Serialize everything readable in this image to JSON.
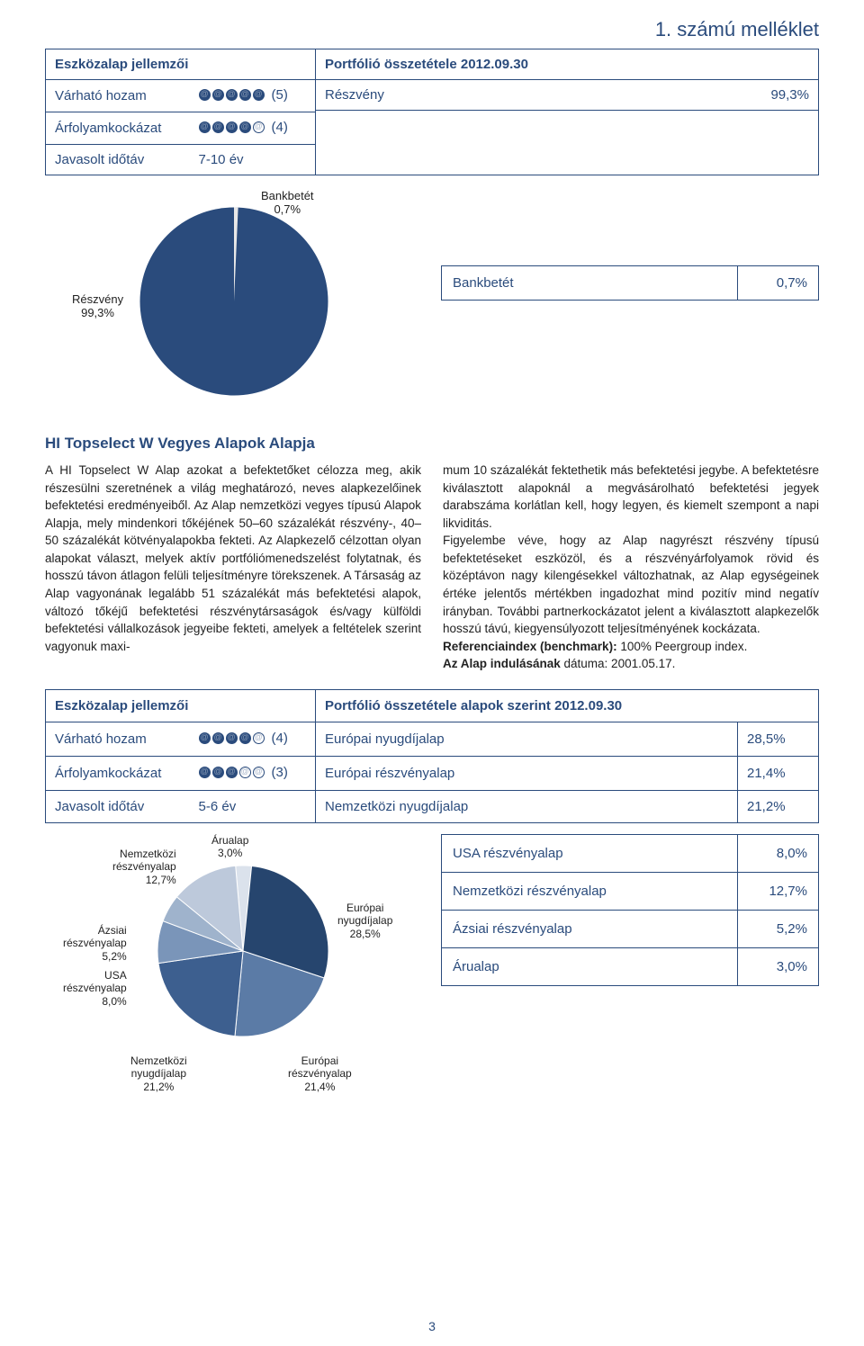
{
  "annex_title": "1. számú melléklet",
  "section1": {
    "heading_left": "Eszközalap jellemzői",
    "heading_right": "Portfólió összetétele 2012.09.30",
    "rows": [
      {
        "label": "Várható hozam",
        "rating": 5,
        "rating_text": "(5)"
      },
      {
        "label": "Árfolyamkockázat",
        "rating": 4,
        "rating_text": "(4)"
      },
      {
        "label": "Javasolt időtáv",
        "value": "7-10 év"
      }
    ],
    "comp_rows": [
      {
        "label": "Részvény",
        "value": "99,3%"
      }
    ],
    "comp_table": [
      {
        "label": "Bankbetét",
        "value": "0,7%"
      }
    ],
    "pie": {
      "type": "pie",
      "slices": [
        {
          "label": "Részvény",
          "value": 99.3,
          "color": "#2a4b7c"
        },
        {
          "label": "Bankbetét",
          "value": 0.7,
          "color": "#e8e8e8"
        }
      ],
      "label_left_line1": "Részvény",
      "label_left_line2": "99,3%",
      "label_top_line1": "Bankbetét",
      "label_top_line2": "0,7%"
    }
  },
  "fund_title": "HI Topselect W Vegyes Alapok Alapja",
  "body": {
    "left": "A HI Topselect W Alap azokat a befektetőket célozza meg, akik részesülni szeretnének a világ meghatározó, neves alapkezelőinek befektetési eredményeiből. Az Alap nemzetközi vegyes típusú Alapok Alapja, mely mindenkori tőkéjének 50–60 százalékát részvény-, 40–50 százalékát kötvényalapokba fekteti. Az Alapkezelő célzottan olyan alapokat választ, melyek aktív portfóliómenedszelést folytatnak, és hosszú távon átlagon felüli teljesítményre törekszenek. A Társaság az Alap vagyonának legalább 51 százalékát más befektetési alapok, változó tőkéjű befektetési részvénytársaságok és/vagy külföldi befektetési vállalkozások jegyeibe fekteti, amelyek a feltételek szerint vagyonuk maxi-",
    "right_p1": "mum 10 százalékát fektethetik más befektetési jegybe. A befektetésre kiválasztott alapoknál a megvásárolható befektetési jegyek darabszáma korlátlan kell, hogy legyen, és kiemelt szempont a napi likviditás.",
    "right_p2": "Figyelembe véve, hogy az Alap nagyrészt részvény típusú befektetéseket eszközöl, és a részvényárfolyamok rövid és középtávon nagy kilengésekkel változhatnak, az Alap egységeinek értéke jelentős mértékben ingadozhat mind pozitív mind negatív irányban. További partnerkockázatot jelent a kiválasztott alapkezelők hosszú távú, kiegyensúlyozott teljesítményének kockázata.",
    "ref_label": "Referenciaindex (benchmark):",
    "ref_value": " 100% Peergroup index.",
    "start_label": "Az Alap indulásának",
    "start_value": " dátuma: 2001.05.17."
  },
  "section2": {
    "heading_left": "Eszközalap jellemzői",
    "heading_right": "Portfólió összetétele alapok szerint 2012.09.30",
    "rows": [
      {
        "label": "Várható hozam",
        "rating": 4,
        "rating_text": "(4)",
        "comp_label": "Európai nyugdíjalap",
        "comp_value": "28,5%"
      },
      {
        "label": "Árfolyamkockázat",
        "rating": 3,
        "rating_text": "(3)",
        "comp_label": "Európai részvényalap",
        "comp_value": "21,4%"
      },
      {
        "label": "Javasolt időtáv",
        "value": "5-6 év",
        "comp_label": "Nemzetközi nyugdíjalap",
        "comp_value": "21,2%"
      }
    ],
    "comp_extra": [
      {
        "label": "USA részvényalap",
        "value": "8,0%"
      },
      {
        "label": "Nemzetközi részvényalap",
        "value": "12,7%"
      },
      {
        "label": "Ázsiai részvényalap",
        "value": "5,2%"
      },
      {
        "label": "Árualap",
        "value": "3,0%"
      }
    ],
    "pie": {
      "type": "pie",
      "slices": [
        {
          "label": "Európai nyugdíjalap",
          "value": 28.5,
          "color": "#26456e"
        },
        {
          "label": "Európai részvényalap",
          "value": 21.4,
          "color": "#5b7ba6"
        },
        {
          "label": "Nemzetközi nyugdíjalap",
          "value": 21.2,
          "color": "#3d5f8f"
        },
        {
          "label": "USA részvényalap",
          "value": 8.0,
          "color": "#7a95b9"
        },
        {
          "label": "Ázsiai részvényalap",
          "value": 5.2,
          "color": "#9fb3cc"
        },
        {
          "label": "Nemzetközi részvényalap",
          "value": 12.7,
          "color": "#bdc9db"
        },
        {
          "label": "Árualap",
          "value": 3.0,
          "color": "#dbe2ec"
        }
      ],
      "labels": {
        "aru": {
          "l1": "Árualap",
          "l2": "3,0%"
        },
        "eu_ny": {
          "l1": "Európai",
          "l2": "nyugdíjalap",
          "l3": "28,5%"
        },
        "nk_rv": {
          "l1": "Nemzetközi",
          "l2": "részvényalap",
          "l3": "12,7%"
        },
        "az_rv": {
          "l1": "Ázsiai",
          "l2": "részvényalap",
          "l3": "5,2%"
        },
        "usa": {
          "l1": "USA",
          "l2": "részvényalap",
          "l3": "8,0%"
        },
        "nk_ny": {
          "l1": "Nemzetközi",
          "l2": "nyugdíjalap",
          "l3": "21,2%"
        },
        "eu_rv": {
          "l1": "Európai",
          "l2": "részvényalap",
          "l3": "21,4%"
        }
      }
    }
  },
  "page_number": "3"
}
